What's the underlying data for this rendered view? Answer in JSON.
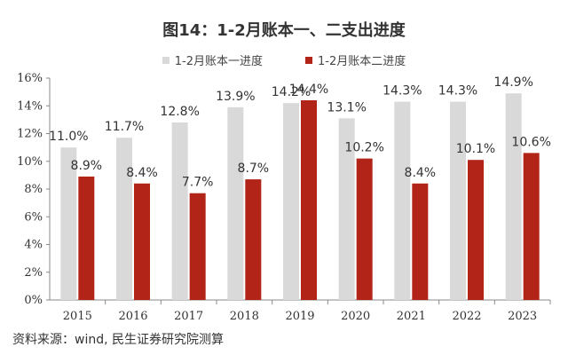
{
  "chart_data": {
    "type": "bar",
    "title": "图14：1-2月账本一、二支出进度",
    "categories": [
      "2015",
      "2016",
      "2017",
      "2018",
      "2019",
      "2020",
      "2021",
      "2022",
      "2023"
    ],
    "series": [
      {
        "name": "1-2月账本一进度",
        "color": "#d9d9d9",
        "values": [
          11.0,
          11.7,
          12.8,
          13.9,
          14.2,
          13.1,
          14.3,
          14.3,
          14.9
        ],
        "labels": [
          "11.0%",
          "11.7%",
          "12.8%",
          "13.9%",
          "14.2%",
          "13.1%",
          "14.3%",
          "14.3%",
          "14.9%"
        ]
      },
      {
        "name": "1-2月账本二进度",
        "color": "#b22418",
        "values": [
          8.9,
          8.4,
          7.7,
          8.7,
          14.4,
          10.2,
          8.4,
          10.1,
          10.6
        ],
        "labels": [
          "8.9%",
          "8.4%",
          "7.7%",
          "8.7%",
          "14.4%",
          "10.2%",
          "8.4%",
          "10.1%",
          "10.6%"
        ]
      }
    ],
    "ylim": [
      0,
      16
    ],
    "yticks": [
      "0%",
      "2%",
      "4%",
      "6%",
      "8%",
      "10%",
      "12%",
      "14%",
      "16%"
    ],
    "grid": false,
    "legend_position": "top"
  },
  "source": "资料来源：wind, 民生证券研究院测算"
}
